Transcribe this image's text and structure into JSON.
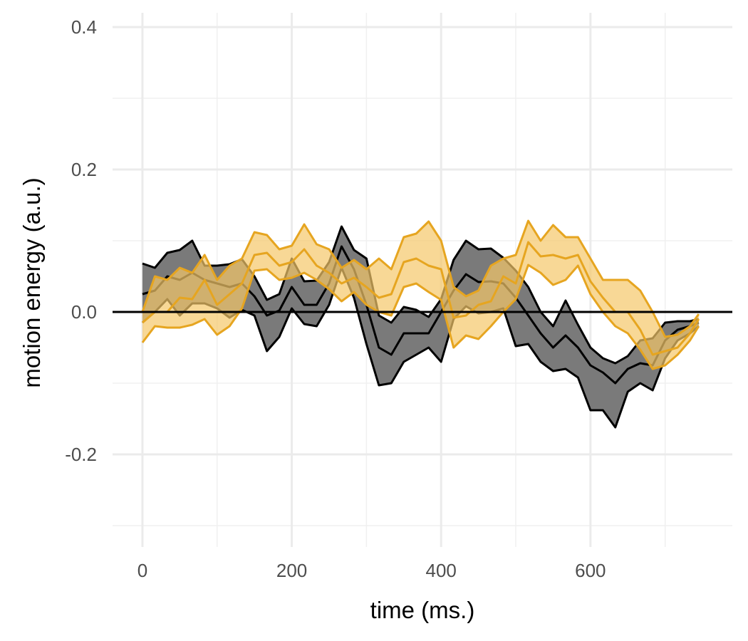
{
  "chart_data": {
    "type": "area",
    "title": "",
    "xlabel": "time (ms.)",
    "ylabel": "motion energy (a.u.)",
    "xlim": [
      -40,
      790
    ],
    "ylim": [
      -0.33,
      0.42
    ],
    "x_ticks": [
      0,
      200,
      400,
      600
    ],
    "x_tick_labels": [
      "0",
      "200",
      "400",
      "600"
    ],
    "y_ticks": [
      -0.2,
      0.0,
      0.2,
      0.4
    ],
    "y_tick_labels": [
      "-0.2",
      "0.0",
      "0.2",
      "0.4"
    ],
    "grid": true,
    "legend": "none",
    "reference_line": 0,
    "x": [
      0,
      16.7,
      33.3,
      50,
      66.7,
      83.3,
      100,
      116.7,
      133.3,
      150,
      166.7,
      183.3,
      200,
      216.7,
      233.3,
      250,
      266.7,
      283.3,
      300,
      316.7,
      333.3,
      350,
      366.7,
      383.3,
      400,
      416.7,
      433.3,
      450,
      466.7,
      483.3,
      500,
      516.7,
      533.3,
      550,
      566.7,
      583.3,
      600,
      616.7,
      633.3,
      650,
      666.7,
      683.3,
      700,
      716.7,
      733.3,
      745
    ],
    "series": [
      {
        "color": "#000000",
        "fill": "#7a7a7a",
        "upper": [
          0.068,
          0.062,
          0.083,
          0.087,
          0.1,
          0.065,
          0.065,
          0.067,
          0.074,
          0.05,
          0.017,
          0.025,
          0.075,
          0.043,
          0.044,
          0.07,
          0.12,
          0.087,
          0.075,
          -0.005,
          -0.015,
          0.007,
          0.003,
          -0.007,
          0.018,
          0.073,
          0.1,
          0.088,
          0.089,
          0.076,
          0.058,
          0.035,
          0.0,
          -0.02,
          0.016,
          -0.018,
          -0.05,
          -0.065,
          -0.072,
          -0.062,
          -0.04,
          -0.037,
          -0.015,
          -0.013,
          -0.013,
          -0.01
        ],
        "mean": [
          0.025,
          0.03,
          0.05,
          0.045,
          0.055,
          0.045,
          0.04,
          0.035,
          0.04,
          0.022,
          -0.005,
          0.002,
          0.035,
          0.01,
          0.01,
          0.04,
          0.092,
          0.06,
          0.01,
          -0.05,
          -0.06,
          -0.03,
          -0.03,
          -0.03,
          0.0,
          0.03,
          0.053,
          0.042,
          0.043,
          0.04,
          0.02,
          -0.005,
          -0.03,
          -0.05,
          -0.033,
          -0.05,
          -0.075,
          -0.085,
          -0.1,
          -0.08,
          -0.072,
          -0.075,
          -0.04,
          -0.025,
          -0.02,
          -0.015
        ],
        "lower": [
          -0.015,
          0.0,
          0.018,
          -0.005,
          0.012,
          0.012,
          0.005,
          -0.008,
          0.003,
          -0.005,
          -0.055,
          -0.035,
          0.005,
          -0.017,
          -0.02,
          0.01,
          0.062,
          0.02,
          -0.045,
          -0.103,
          -0.1,
          -0.07,
          -0.06,
          -0.05,
          -0.07,
          -0.01,
          0.008,
          -0.002,
          0.0,
          0.005,
          -0.048,
          -0.045,
          -0.07,
          -0.083,
          -0.08,
          -0.092,
          -0.138,
          -0.138,
          -0.162,
          -0.112,
          -0.1,
          -0.11,
          -0.065,
          -0.04,
          -0.03,
          -0.02
        ]
      },
      {
        "color": "#E6A520",
        "fill": "#F5C76A",
        "upper": [
          0.0,
          0.05,
          0.045,
          0.062,
          0.055,
          0.08,
          0.045,
          0.065,
          0.075,
          0.112,
          0.108,
          0.088,
          0.093,
          0.123,
          0.095,
          0.088,
          0.062,
          0.073,
          0.06,
          0.075,
          0.06,
          0.105,
          0.11,
          0.127,
          0.1,
          0.035,
          0.022,
          0.03,
          0.065,
          0.075,
          0.08,
          0.128,
          0.1,
          0.122,
          0.105,
          0.105,
          0.075,
          0.045,
          0.045,
          0.045,
          0.03,
          0.0,
          -0.035,
          -0.032,
          -0.02,
          -0.003
        ],
        "mean": [
          -0.015,
          0.0,
          0.0,
          0.02,
          0.018,
          0.045,
          0.01,
          0.025,
          0.04,
          0.08,
          0.083,
          0.065,
          0.07,
          0.088,
          0.065,
          0.055,
          0.04,
          0.048,
          0.035,
          0.02,
          0.025,
          0.07,
          0.075,
          0.065,
          0.06,
          -0.008,
          -0.005,
          0.01,
          0.015,
          0.05,
          0.04,
          0.098,
          0.078,
          0.08,
          0.075,
          0.08,
          0.043,
          0.02,
          0.0,
          0.0,
          -0.025,
          -0.06,
          -0.055,
          -0.05,
          -0.03,
          -0.01
        ],
        "lower": [
          -0.043,
          -0.02,
          -0.022,
          -0.022,
          -0.018,
          -0.01,
          -0.032,
          -0.02,
          0.005,
          0.058,
          0.06,
          0.045,
          0.048,
          0.055,
          0.045,
          0.032,
          0.015,
          0.028,
          0.01,
          0.0,
          -0.005,
          0.035,
          0.04,
          0.028,
          0.017,
          -0.05,
          -0.033,
          -0.038,
          -0.02,
          0.0,
          0.018,
          0.066,
          0.055,
          0.038,
          0.045,
          0.065,
          0.025,
          0.0,
          -0.02,
          -0.03,
          -0.053,
          -0.08,
          -0.075,
          -0.06,
          -0.04,
          -0.02
        ]
      }
    ]
  }
}
